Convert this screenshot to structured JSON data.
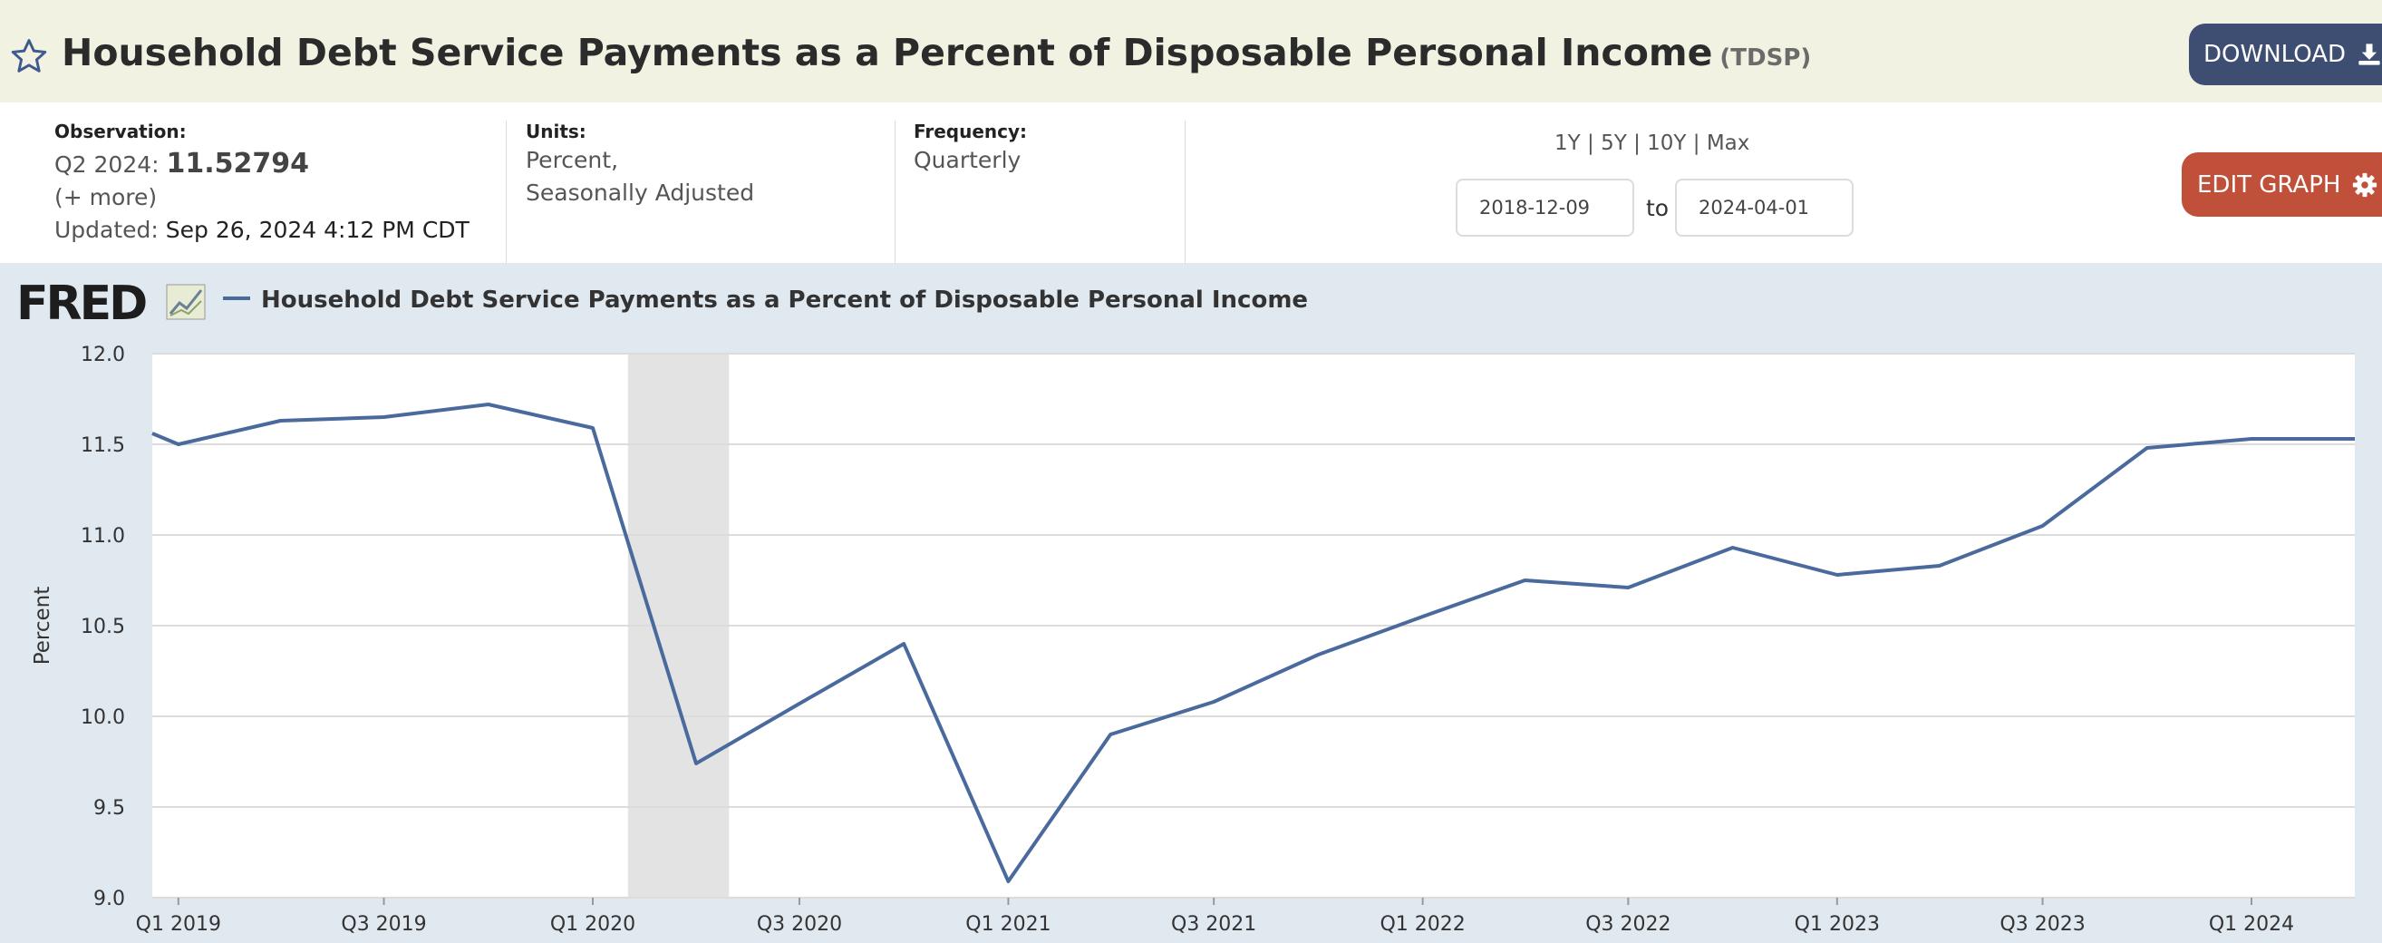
{
  "header": {
    "title": "Household Debt Service Payments as a Percent of Disposable Personal Income",
    "series_code": "(TDSP)",
    "download_label": "DOWNLOAD"
  },
  "info": {
    "observation_label": "Observation:",
    "observation_period": "Q2 2024:",
    "observation_value": "11.52794",
    "more_label": "(+ more)",
    "updated_label": "Updated:",
    "updated_value": "Sep 26, 2024 4:12 PM CDT",
    "units_label": "Units:",
    "units_line1": "Percent,",
    "units_line2": "Seasonally Adjusted",
    "frequency_label": "Frequency:",
    "frequency_value": "Quarterly"
  },
  "controls": {
    "range_1y": "1Y",
    "range_5y": "5Y",
    "range_10y": "10Y",
    "range_max": "Max",
    "separator": "|",
    "start_date": "2018-12-09",
    "to_label": "to",
    "end_date": "2024-04-01",
    "edit_label": "EDIT GRAPH"
  },
  "chart_data": {
    "type": "line",
    "logo": "FRED",
    "legend": "Household Debt Service Payments as a Percent of Disposable Personal Income",
    "ylabel": "Percent",
    "ylim": [
      9.0,
      12.0
    ],
    "yticks": [
      "9.0",
      "9.5",
      "10.0",
      "10.5",
      "11.0",
      "11.5",
      "12.0"
    ],
    "xlim": [
      "2018-12-09",
      "2024-04-01"
    ],
    "xticks": [
      {
        "label": "Q1 2019",
        "date": "2019-01-01"
      },
      {
        "label": "Q3 2019",
        "date": "2019-07-01"
      },
      {
        "label": "Q1 2020",
        "date": "2020-01-01"
      },
      {
        "label": "Q3 2020",
        "date": "2020-07-01"
      },
      {
        "label": "Q1 2021",
        "date": "2021-01-01"
      },
      {
        "label": "Q3 2021",
        "date": "2021-07-01"
      },
      {
        "label": "Q1 2022",
        "date": "2022-01-01"
      },
      {
        "label": "Q3 2022",
        "date": "2022-07-01"
      },
      {
        "label": "Q1 2023",
        "date": "2023-01-01"
      },
      {
        "label": "Q3 2023",
        "date": "2023-07-01"
      },
      {
        "label": "Q1 2024",
        "date": "2024-01-01"
      }
    ],
    "recession": [
      "2020-02-01",
      "2020-04-30"
    ],
    "line_color": "#4a6a9e",
    "series": [
      {
        "x": [
          "2019-01-01",
          "2019-04-01",
          "2019-07-01",
          "2019-10-01",
          "2020-01-01",
          "2020-04-01",
          "2020-07-01",
          "2020-10-01",
          "2021-01-01",
          "2021-04-01",
          "2021-07-01",
          "2021-10-01",
          "2022-01-01",
          "2022-04-01",
          "2022-07-01",
          "2022-10-01",
          "2023-01-01",
          "2023-04-01",
          "2023-07-01",
          "2023-10-01",
          "2024-01-01",
          "2024-04-01"
        ],
        "y": [
          11.5,
          11.63,
          11.65,
          11.72,
          11.59,
          9.74,
          10.07,
          10.4,
          9.09,
          9.9,
          10.08,
          10.34,
          10.55,
          10.75,
          10.71,
          10.93,
          10.78,
          10.83,
          11.05,
          11.48,
          11.53,
          11.53
        ]
      }
    ]
  }
}
